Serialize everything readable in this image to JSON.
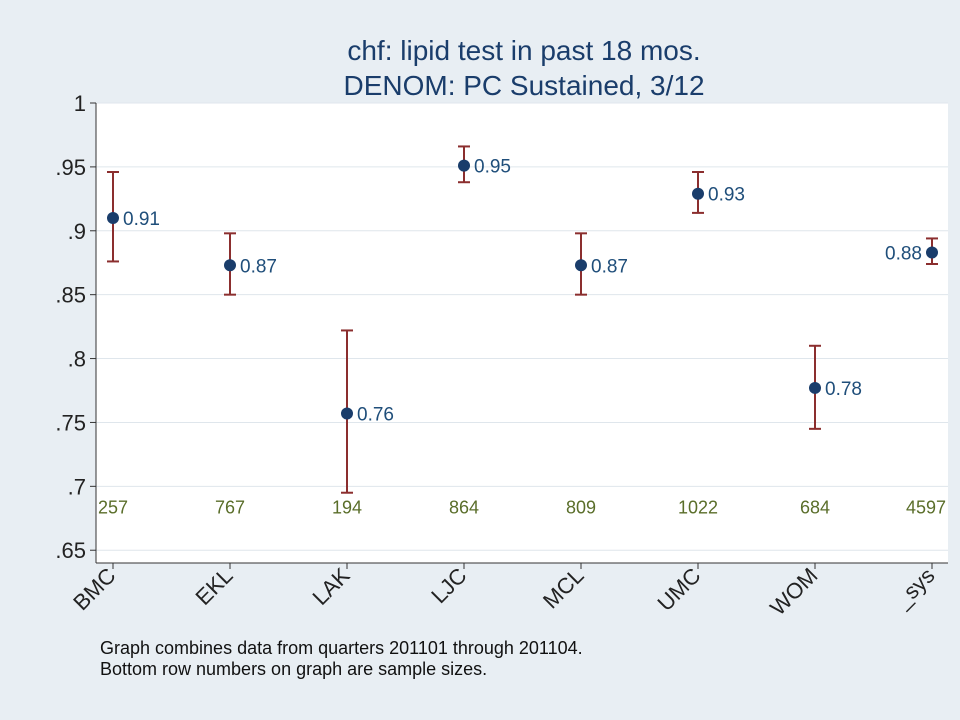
{
  "chart_data": {
    "type": "scatter",
    "title": "chf: lipid test in past 18 mos.",
    "subtitle": "DENOM: PC Sustained, 3/12",
    "xlabel": "",
    "ylabel": "",
    "ylim": [
      0.64,
      1.0
    ],
    "y_ticks": [
      0.65,
      0.7,
      0.75,
      0.8,
      0.85,
      0.9,
      0.95,
      1
    ],
    "y_tick_labels": [
      ".65",
      ".7",
      ".75",
      ".8",
      ".85",
      ".9",
      ".95",
      "1"
    ],
    "grid": "horizontal",
    "categories": [
      "BMC",
      "EKL",
      "LAK",
      "LJC",
      "MCL",
      "UMC",
      "WOM",
      "_sys"
    ],
    "values": [
      0.91,
      0.873,
      0.757,
      0.951,
      0.873,
      0.929,
      0.777,
      0.883
    ],
    "point_labels": [
      "0.91",
      "0.87",
      "0.76",
      "0.95",
      "0.87",
      "0.93",
      "0.78",
      "0.88"
    ],
    "ci_low": [
      0.876,
      0.85,
      0.695,
      0.938,
      0.85,
      0.914,
      0.745,
      0.874
    ],
    "ci_high": [
      0.946,
      0.898,
      0.822,
      0.966,
      0.898,
      0.946,
      0.81,
      0.894
    ],
    "sample_sizes": [
      "257",
      "767",
      "194",
      "864",
      "809",
      "1022",
      "684",
      "4597"
    ],
    "notes": [
      "Graph combines data from quarters 201101 through 201104.",
      "Bottom row numbers on graph are sample sizes."
    ],
    "colors": {
      "background": "#e8eef3",
      "plot_background": "#ffffff",
      "marker": "#1a3d6b",
      "error_bar": "#8b2e2e",
      "point_label": "#1f4e7a",
      "sample_size": "#5a6e2a",
      "title": "#1a3d6b",
      "grid": "#dfe6ec"
    }
  }
}
